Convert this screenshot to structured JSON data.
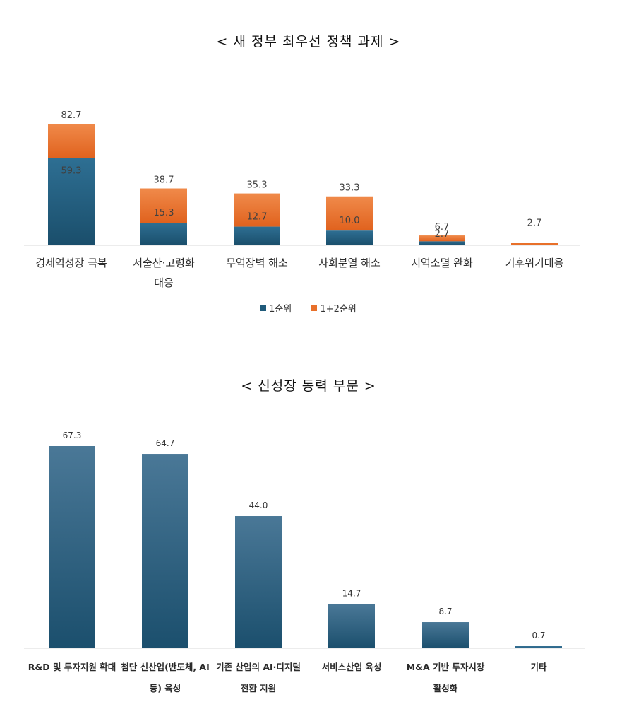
{
  "chart_data": [
    {
      "type": "bar",
      "stacked": true,
      "title": "< 새 정부 최우선 정책 과제 >",
      "categories": [
        [
          "경제역성장 극복"
        ],
        [
          "저출산·고령화",
          "대응"
        ],
        [
          "무역장벽 해소"
        ],
        [
          "사회분열 해소"
        ],
        [
          "지역소멸 완화"
        ],
        [
          "기후위기대응"
        ]
      ],
      "series": [
        {
          "name": "1순위",
          "values": [
            59.3,
            15.3,
            12.7,
            10.0,
            2.7,
            2.7
          ],
          "color": "#1f5a7a"
        },
        {
          "name": "1+2순위",
          "values": [
            82.7,
            38.7,
            35.3,
            33.3,
            6.7,
            2.7
          ],
          "color": "#e8702a"
        }
      ],
      "data_labels_inner": [
        "59.3",
        "15.3",
        "12.7",
        "10.0",
        "2.7",
        ""
      ],
      "data_labels_total": [
        "82.7",
        "38.7",
        "35.3",
        "33.3",
        "6.7",
        "2.7"
      ],
      "legend": "bottom"
    },
    {
      "type": "bar",
      "title": "< 신성장 동력 부문 >",
      "categories": [
        [
          "R&D 및 투자지원 확대"
        ],
        [
          "첨단 신산업(반도체, AI",
          "등) 육성"
        ],
        [
          "기존 산업의 AI·디지털",
          "전환 지원"
        ],
        [
          "서비스산업 육성"
        ],
        [
          "M&A 기반 투자시장",
          "활성화"
        ],
        [
          "기타"
        ]
      ],
      "values": [
        67.3,
        64.7,
        44.0,
        14.7,
        8.7,
        0.7
      ],
      "data_labels": [
        "67.3",
        "64.7",
        "44.0",
        "14.7",
        "8.7",
        "0.7"
      ],
      "color": "#1f5a7a"
    }
  ]
}
